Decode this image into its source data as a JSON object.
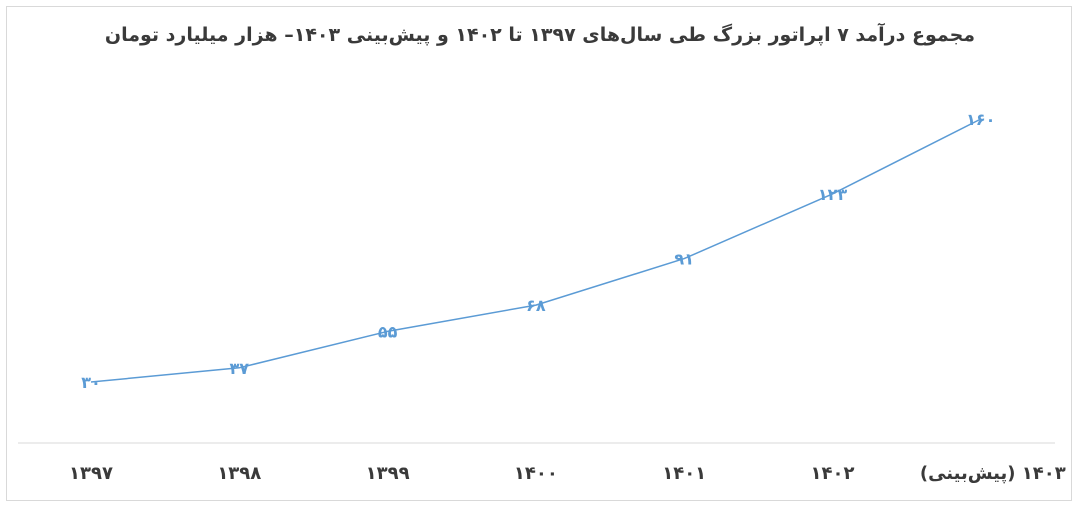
{
  "chart_data": {
    "type": "line",
    "title": "مجموع درآمد ۷ اپراتور بزرگ طی سال‌های ۱۳۹۷ تا ۱۴۰۲ و پیش‌بینی ۱۴۰۳– هزار میلیارد تومان",
    "categories": [
      "۱۳۹۷",
      "۱۳۹۸",
      "۱۳۹۹",
      "۱۴۰۰",
      "۱۴۰۱",
      "۱۴۰۲",
      "۱۴۰۳ (پیش‌بینی)"
    ],
    "values": [
      30,
      37,
      55,
      68,
      91,
      123,
      160
    ],
    "data_labels": [
      "۳۰",
      "۳۷",
      "۵۵",
      "۶۸",
      "۹۱",
      "۱۲۳",
      "۱۶۰"
    ],
    "xlabel": "",
    "ylabel": "",
    "ylim": [
      0,
      180
    ],
    "grid": false,
    "legend": "none",
    "colors": {
      "line": "#5b9bd5",
      "text": "#3a3a3a",
      "axis": "#d9d9d9"
    }
  }
}
